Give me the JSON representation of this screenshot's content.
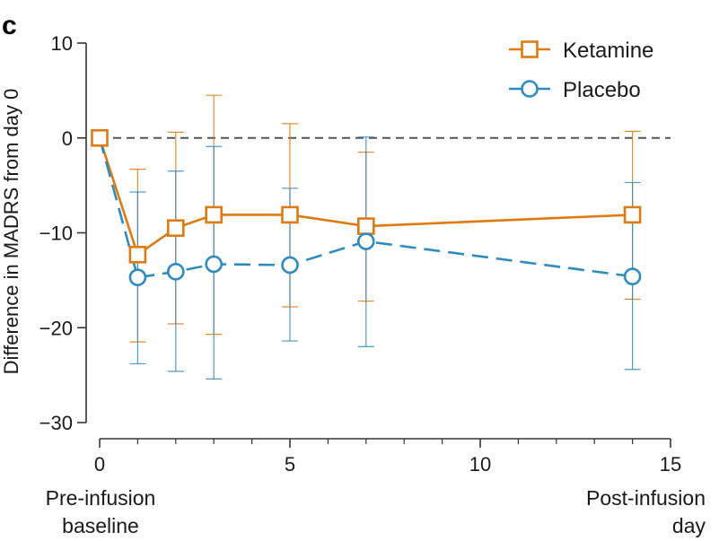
{
  "panel_label": "c",
  "colors": {
    "ketamine": "#E07A10",
    "placebo": "#2E8BC0",
    "axis": "#333333",
    "zero_line": "#555555"
  },
  "chart_data": {
    "type": "line",
    "ylabel": "Difference in MADRS from day 0",
    "xlim": [
      0,
      15
    ],
    "ylim": [
      -30,
      10
    ],
    "x_ticks": [
      0,
      5,
      10,
      15
    ],
    "y_ticks": [
      10,
      0,
      -10,
      -20,
      -30
    ],
    "y_tick_labels": [
      "10",
      "0",
      "−10",
      "−20",
      "−30"
    ],
    "x_minor_ticks": [
      1,
      2,
      3,
      4,
      6,
      7,
      8,
      9,
      11,
      12,
      13,
      14
    ],
    "reference_line": 0,
    "x_annotations": {
      "left": [
        "Pre-infusion",
        "baseline"
      ],
      "right": [
        "Post-infusion",
        "day"
      ]
    },
    "legend_position": "top-right",
    "series": [
      {
        "name": "Ketamine",
        "marker": "square",
        "line_style": "solid",
        "color": "#E07A10",
        "x": [
          0,
          1,
          2,
          3,
          5,
          7,
          14
        ],
        "y": [
          0,
          -12.3,
          -9.5,
          -8.1,
          -8.1,
          -9.3,
          -8.1
        ],
        "err_low": [
          null,
          -21.5,
          -19.6,
          -20.7,
          -17.8,
          -17.2,
          -17.0
        ],
        "err_high": [
          null,
          -3.3,
          0.6,
          4.5,
          1.5,
          -1.5,
          0.7
        ]
      },
      {
        "name": "Placebo",
        "marker": "circle",
        "line_style": "dashed",
        "color": "#2E8BC0",
        "x": [
          0,
          1,
          2,
          3,
          5,
          7,
          14
        ],
        "y": [
          0,
          -14.7,
          -14.1,
          -13.3,
          -13.4,
          -10.9,
          -14.6
        ],
        "err_low": [
          null,
          -23.8,
          -24.6,
          -25.4,
          -21.4,
          -22.0,
          -24.4
        ],
        "err_high": [
          null,
          -5.7,
          -3.5,
          -0.9,
          -5.3,
          0.1,
          -4.7
        ]
      }
    ]
  }
}
